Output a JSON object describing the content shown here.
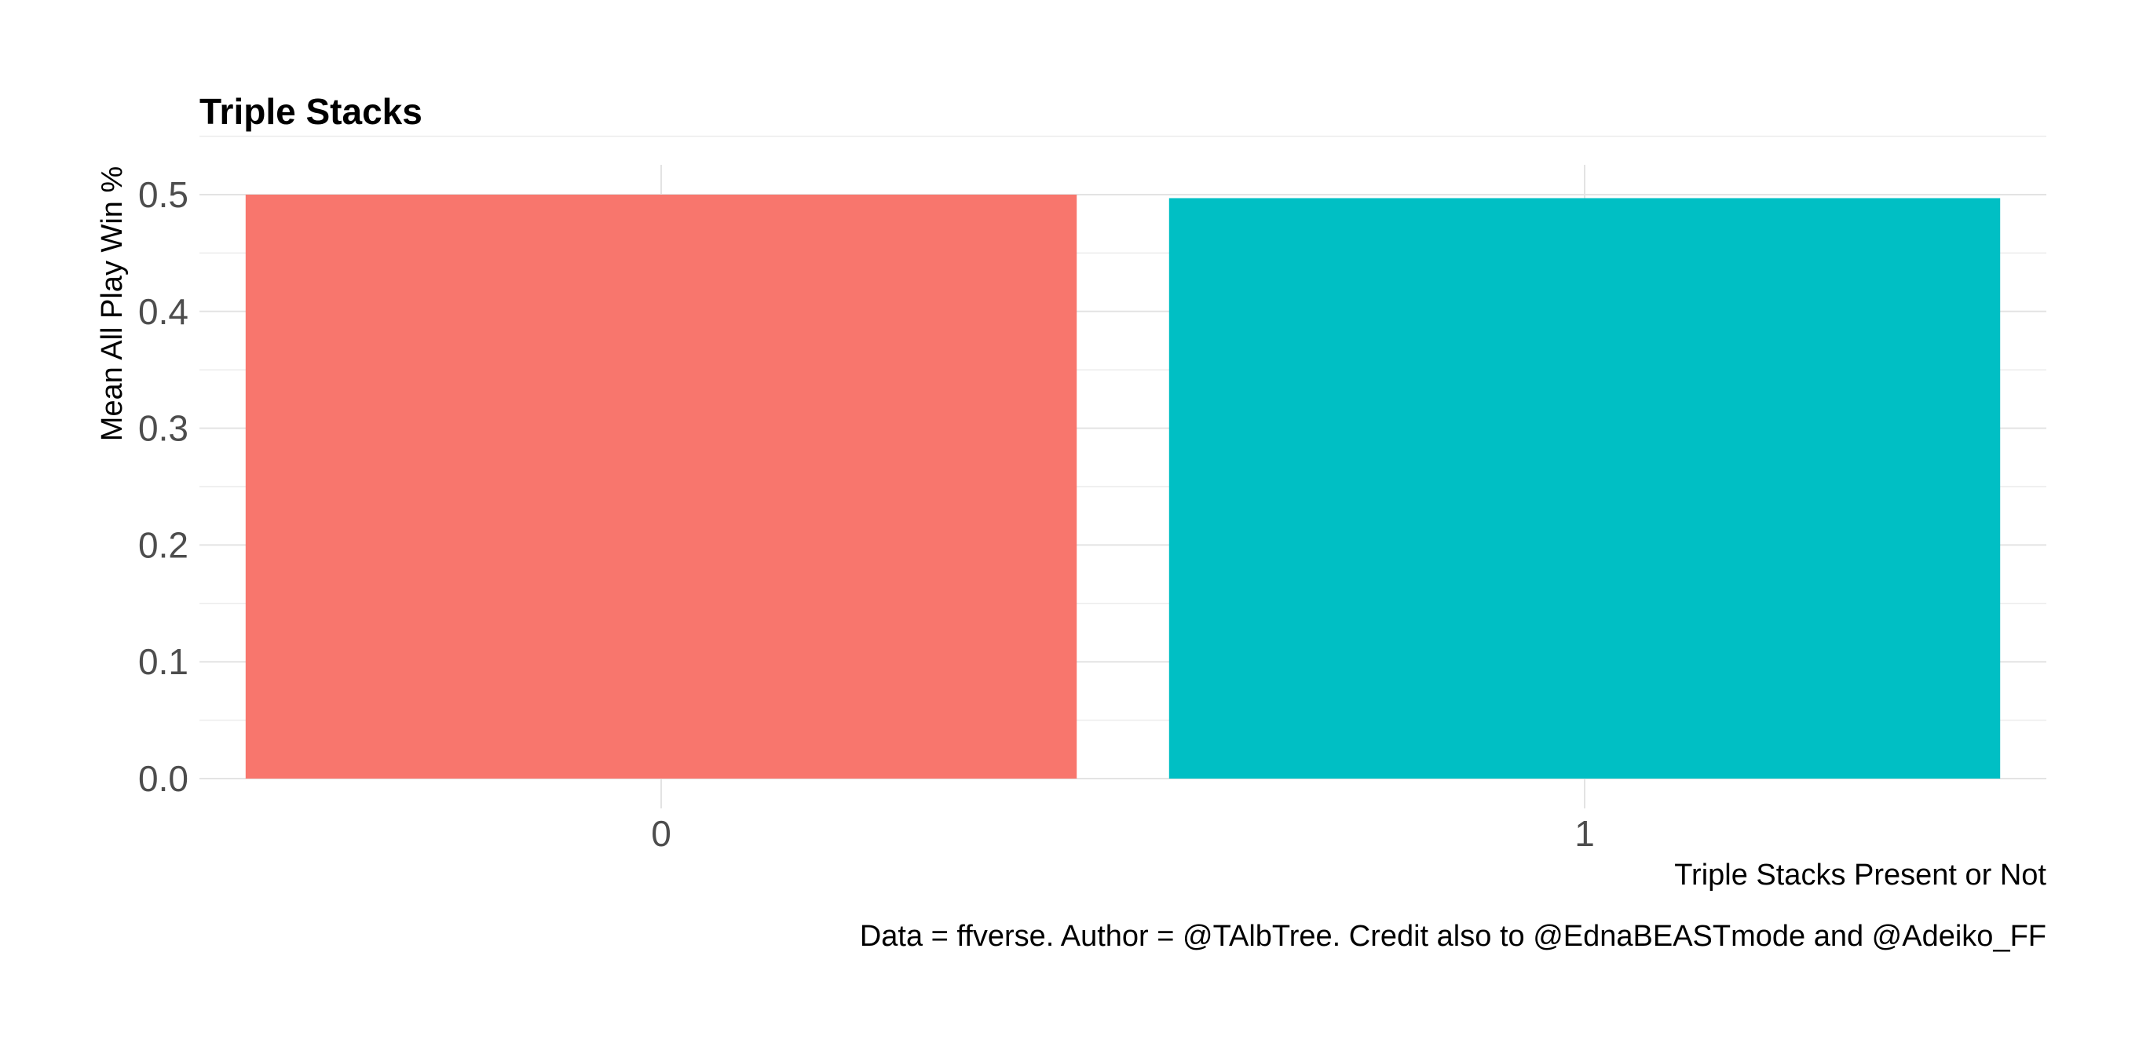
{
  "chart_data": {
    "type": "bar",
    "title": "Triple Stacks",
    "xlabel": "Triple Stacks Present or Not",
    "ylabel": "Mean All Play Win %",
    "caption": "Data = ffverse. Author = @TAlbTree. Credit also to @EdnaBEASTmode and @Adeiko_FF",
    "categories": [
      "0",
      "1"
    ],
    "values": [
      0.5,
      0.497
    ],
    "colors": [
      "#F8766D",
      "#00BFC4"
    ],
    "ylim": [
      0,
      0.5
    ],
    "yticks": [
      0.0,
      0.1,
      0.2,
      0.3,
      0.4,
      0.5
    ],
    "ytick_labels": [
      "0.0",
      "0.1",
      "0.2",
      "0.3",
      "0.4",
      "0.5"
    ],
    "grid": true,
    "legend": "none"
  }
}
